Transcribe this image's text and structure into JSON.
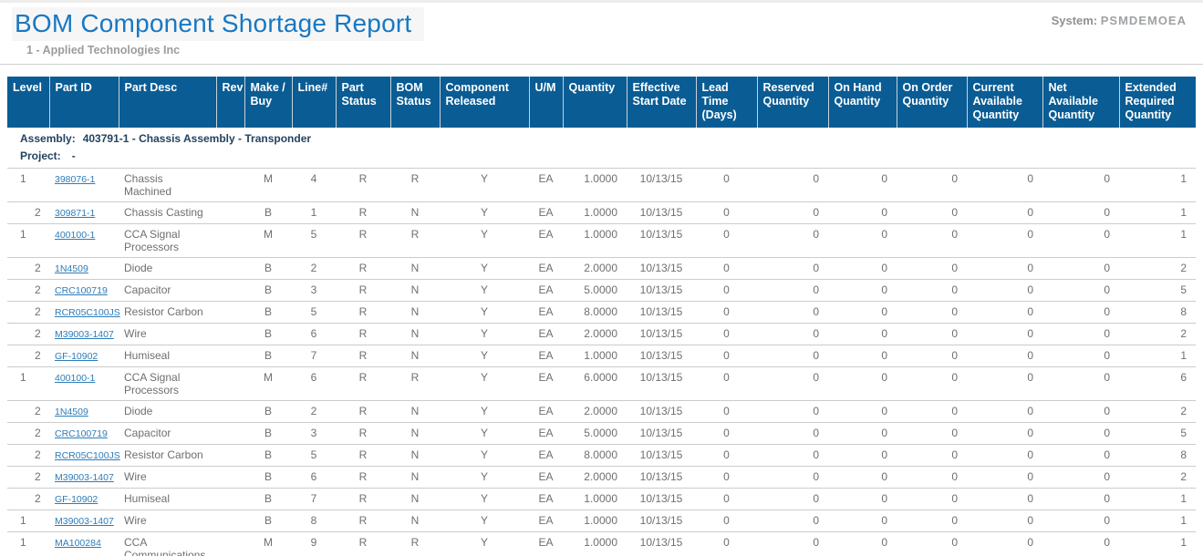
{
  "page": {
    "title": "BOM Component Shortage Report",
    "system_label": "System:",
    "system_value": "PSMDEMOEA",
    "company": "1 - Applied Technologies Inc"
  },
  "colors": {
    "title_blue": "#1878c2",
    "header_bar_blue": "#0a5c94",
    "link_blue": "#2e7cb8",
    "assembly_navy": "#24435f",
    "muted_gray": "#9c9c9c",
    "cell_gray": "#6f6f6f",
    "row_border_gray": "#cccccc"
  },
  "table": {
    "headers": [
      "Level",
      "Part ID",
      "Part Desc",
      "Rev",
      "Make / Buy",
      "Line#",
      "Part Status",
      "BOM Status",
      "Component Released",
      "U/M",
      "Quantity",
      "Effective Start Date",
      "Lead Time (Days)",
      "Reserved Quantity",
      "On Hand Quantity",
      "On Order Quantity",
      "Current Available Quantity",
      "Net Available Quantity",
      "Extended Required Quantity"
    ],
    "assembly_label": "Assembly:",
    "assembly_value": "403791-1 - Chassis Assembly - Transponder",
    "project_label": "Project:",
    "project_value": "-",
    "rows": [
      {
        "level": "1",
        "part_id": "398076-1",
        "part_desc": "Chassis Machined",
        "rev": "",
        "make_buy": "M",
        "line_no": "4",
        "part_status": "R",
        "bom_status": "R",
        "component_released": "Y",
        "um": "EA",
        "quantity": "1.0000",
        "effective_start_date": "10/13/15",
        "lead_time": "0",
        "reserved_qty": "0",
        "on_hand_qty": "0",
        "on_order_qty": "0",
        "current_available_qty": "0",
        "net_available_qty": "0",
        "extended_required_qty": "1"
      },
      {
        "level": "2",
        "part_id": "309871-1",
        "part_desc": "Chassis Casting",
        "rev": "",
        "make_buy": "B",
        "line_no": "1",
        "part_status": "R",
        "bom_status": "N",
        "component_released": "Y",
        "um": "EA",
        "quantity": "1.0000",
        "effective_start_date": "10/13/15",
        "lead_time": "0",
        "reserved_qty": "0",
        "on_hand_qty": "0",
        "on_order_qty": "0",
        "current_available_qty": "0",
        "net_available_qty": "0",
        "extended_required_qty": "1"
      },
      {
        "level": "1",
        "part_id": "400100-1",
        "part_desc": "CCA Signal Processors",
        "rev": "",
        "make_buy": "M",
        "line_no": "5",
        "part_status": "R",
        "bom_status": "R",
        "component_released": "Y",
        "um": "EA",
        "quantity": "1.0000",
        "effective_start_date": "10/13/15",
        "lead_time": "0",
        "reserved_qty": "0",
        "on_hand_qty": "0",
        "on_order_qty": "0",
        "current_available_qty": "0",
        "net_available_qty": "0",
        "extended_required_qty": "1"
      },
      {
        "level": "2",
        "part_id": "1N4509",
        "part_desc": "Diode",
        "rev": "",
        "make_buy": "B",
        "line_no": "2",
        "part_status": "R",
        "bom_status": "N",
        "component_released": "Y",
        "um": "EA",
        "quantity": "2.0000",
        "effective_start_date": "10/13/15",
        "lead_time": "0",
        "reserved_qty": "0",
        "on_hand_qty": "0",
        "on_order_qty": "0",
        "current_available_qty": "0",
        "net_available_qty": "0",
        "extended_required_qty": "2"
      },
      {
        "level": "2",
        "part_id": "CRC100719",
        "part_desc": "Capacitor",
        "rev": "",
        "make_buy": "B",
        "line_no": "3",
        "part_status": "R",
        "bom_status": "N",
        "component_released": "Y",
        "um": "EA",
        "quantity": "5.0000",
        "effective_start_date": "10/13/15",
        "lead_time": "0",
        "reserved_qty": "0",
        "on_hand_qty": "0",
        "on_order_qty": "0",
        "current_available_qty": "0",
        "net_available_qty": "0",
        "extended_required_qty": "5"
      },
      {
        "level": "2",
        "part_id": "RCR05C100JS",
        "part_desc": "Resistor Carbon",
        "rev": "",
        "make_buy": "B",
        "line_no": "5",
        "part_status": "R",
        "bom_status": "N",
        "component_released": "Y",
        "um": "EA",
        "quantity": "8.0000",
        "effective_start_date": "10/13/15",
        "lead_time": "0",
        "reserved_qty": "0",
        "on_hand_qty": "0",
        "on_order_qty": "0",
        "current_available_qty": "0",
        "net_available_qty": "0",
        "extended_required_qty": "8"
      },
      {
        "level": "2",
        "part_id": "M39003-1407",
        "part_desc": "Wire",
        "rev": "",
        "make_buy": "B",
        "line_no": "6",
        "part_status": "R",
        "bom_status": "N",
        "component_released": "Y",
        "um": "EA",
        "quantity": "2.0000",
        "effective_start_date": "10/13/15",
        "lead_time": "0",
        "reserved_qty": "0",
        "on_hand_qty": "0",
        "on_order_qty": "0",
        "current_available_qty": "0",
        "net_available_qty": "0",
        "extended_required_qty": "2"
      },
      {
        "level": "2",
        "part_id": "GF-10902",
        "part_desc": "Humiseal",
        "rev": "",
        "make_buy": "B",
        "line_no": "7",
        "part_status": "R",
        "bom_status": "N",
        "component_released": "Y",
        "um": "EA",
        "quantity": "1.0000",
        "effective_start_date": "10/13/15",
        "lead_time": "0",
        "reserved_qty": "0",
        "on_hand_qty": "0",
        "on_order_qty": "0",
        "current_available_qty": "0",
        "net_available_qty": "0",
        "extended_required_qty": "1"
      },
      {
        "level": "1",
        "part_id": "400100-1",
        "part_desc": "CCA Signal Processors",
        "rev": "",
        "make_buy": "M",
        "line_no": "6",
        "part_status": "R",
        "bom_status": "R",
        "component_released": "Y",
        "um": "EA",
        "quantity": "6.0000",
        "effective_start_date": "10/13/15",
        "lead_time": "0",
        "reserved_qty": "0",
        "on_hand_qty": "0",
        "on_order_qty": "0",
        "current_available_qty": "0",
        "net_available_qty": "0",
        "extended_required_qty": "6"
      },
      {
        "level": "2",
        "part_id": "1N4509",
        "part_desc": "Diode",
        "rev": "",
        "make_buy": "B",
        "line_no": "2",
        "part_status": "R",
        "bom_status": "N",
        "component_released": "Y",
        "um": "EA",
        "quantity": "2.0000",
        "effective_start_date": "10/13/15",
        "lead_time": "0",
        "reserved_qty": "0",
        "on_hand_qty": "0",
        "on_order_qty": "0",
        "current_available_qty": "0",
        "net_available_qty": "0",
        "extended_required_qty": "2"
      },
      {
        "level": "2",
        "part_id": "CRC100719",
        "part_desc": "Capacitor",
        "rev": "",
        "make_buy": "B",
        "line_no": "3",
        "part_status": "R",
        "bom_status": "N",
        "component_released": "Y",
        "um": "EA",
        "quantity": "5.0000",
        "effective_start_date": "10/13/15",
        "lead_time": "0",
        "reserved_qty": "0",
        "on_hand_qty": "0",
        "on_order_qty": "0",
        "current_available_qty": "0",
        "net_available_qty": "0",
        "extended_required_qty": "5"
      },
      {
        "level": "2",
        "part_id": "RCR05C100JS",
        "part_desc": "Resistor Carbon",
        "rev": "",
        "make_buy": "B",
        "line_no": "5",
        "part_status": "R",
        "bom_status": "N",
        "component_released": "Y",
        "um": "EA",
        "quantity": "8.0000",
        "effective_start_date": "10/13/15",
        "lead_time": "0",
        "reserved_qty": "0",
        "on_hand_qty": "0",
        "on_order_qty": "0",
        "current_available_qty": "0",
        "net_available_qty": "0",
        "extended_required_qty": "8"
      },
      {
        "level": "2",
        "part_id": "M39003-1407",
        "part_desc": "Wire",
        "rev": "",
        "make_buy": "B",
        "line_no": "6",
        "part_status": "R",
        "bom_status": "N",
        "component_released": "Y",
        "um": "EA",
        "quantity": "2.0000",
        "effective_start_date": "10/13/15",
        "lead_time": "0",
        "reserved_qty": "0",
        "on_hand_qty": "0",
        "on_order_qty": "0",
        "current_available_qty": "0",
        "net_available_qty": "0",
        "extended_required_qty": "2"
      },
      {
        "level": "2",
        "part_id": "GF-10902",
        "part_desc": "Humiseal",
        "rev": "",
        "make_buy": "B",
        "line_no": "7",
        "part_status": "R",
        "bom_status": "N",
        "component_released": "Y",
        "um": "EA",
        "quantity": "1.0000",
        "effective_start_date": "10/13/15",
        "lead_time": "0",
        "reserved_qty": "0",
        "on_hand_qty": "0",
        "on_order_qty": "0",
        "current_available_qty": "0",
        "net_available_qty": "0",
        "extended_required_qty": "1"
      },
      {
        "level": "1",
        "part_id": "M39003-1407",
        "part_desc": "Wire",
        "rev": "",
        "make_buy": "B",
        "line_no": "8",
        "part_status": "R",
        "bom_status": "N",
        "component_released": "Y",
        "um": "EA",
        "quantity": "1.0000",
        "effective_start_date": "10/13/15",
        "lead_time": "0",
        "reserved_qty": "0",
        "on_hand_qty": "0",
        "on_order_qty": "0",
        "current_available_qty": "0",
        "net_available_qty": "0",
        "extended_required_qty": "1"
      },
      {
        "level": "1",
        "part_id": "MA100284",
        "part_desc": "CCA Communications I/O",
        "rev": "",
        "make_buy": "M",
        "line_no": "9",
        "part_status": "R",
        "bom_status": "R",
        "component_released": "Y",
        "um": "EA",
        "quantity": "1.0000",
        "effective_start_date": "10/13/15",
        "lead_time": "0",
        "reserved_qty": "0",
        "on_hand_qty": "0",
        "on_order_qty": "0",
        "current_available_qty": "0",
        "net_available_qty": "0",
        "extended_required_qty": "1"
      }
    ]
  }
}
